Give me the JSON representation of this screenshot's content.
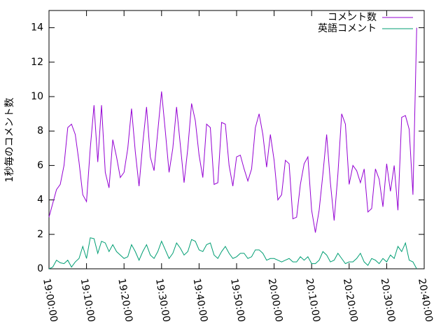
{
  "chart_data": {
    "type": "line",
    "ylabel": "1秒毎のコメント数",
    "x": [
      68400,
      68460,
      68520,
      68580,
      68640,
      68700,
      68760,
      68820,
      68880,
      68940,
      69000,
      69060,
      69120,
      69180,
      69240,
      69300,
      69360,
      69420,
      69480,
      69540,
      69600,
      69660,
      69720,
      69780,
      69840,
      69900,
      69960,
      70020,
      70080,
      70140,
      70200,
      70260,
      70320,
      70380,
      70440,
      70500,
      70560,
      70620,
      70680,
      70740,
      70800,
      70860,
      70920,
      70980,
      71040,
      71100,
      71160,
      71220,
      71280,
      71340,
      71400,
      71460,
      71520,
      71580,
      71640,
      71700,
      71760,
      71820,
      71880,
      71940,
      72000,
      72060,
      72120,
      72180,
      72240,
      72300,
      72360,
      72420,
      72480,
      72540,
      72600,
      72660,
      72720,
      72780,
      72840,
      72900,
      72960,
      73020,
      73080,
      73140,
      73200,
      73260,
      73320,
      73380,
      73440,
      73500,
      73560,
      73620,
      73680,
      73740,
      73800,
      73860,
      73920,
      73980,
      74040,
      74100,
      74160,
      74220,
      74280
    ],
    "series": [
      {
        "name": "コメント数",
        "color": "#9400d3",
        "values": [
          3.0,
          3.8,
          4.6,
          4.9,
          6.0,
          8.2,
          8.4,
          7.8,
          6.2,
          4.3,
          3.9,
          7.0,
          9.5,
          6.2,
          9.5,
          5.6,
          4.7,
          7.5,
          6.5,
          5.3,
          5.6,
          7.0,
          9.3,
          6.8,
          4.8,
          7.3,
          9.4,
          6.5,
          5.7,
          8.0,
          10.3,
          8.0,
          5.6,
          7.0,
          9.4,
          7.2,
          5.0,
          7.0,
          9.6,
          8.6,
          6.6,
          5.3,
          8.4,
          8.2,
          4.9,
          5.0,
          8.5,
          8.4,
          6.0,
          4.8,
          6.5,
          6.6,
          5.8,
          5.1,
          5.8,
          8.2,
          9.0,
          7.8,
          5.9,
          7.8,
          6.3,
          4.0,
          4.3,
          6.3,
          6.1,
          2.9,
          3.0,
          4.9,
          6.1,
          6.5,
          3.4,
          2.1,
          3.4,
          5.5,
          7.8,
          5.0,
          2.8,
          5.5,
          9.0,
          8.4,
          4.9,
          6.0,
          5.7,
          5.0,
          5.8,
          3.3,
          3.5,
          5.8,
          5.2,
          3.6,
          6.1,
          4.5,
          6.0,
          3.4,
          8.8,
          8.9,
          8.1,
          4.3,
          14.0
        ]
      },
      {
        "name": "英語コメント",
        "color": "#009e73",
        "values": [
          0.0,
          0.1,
          0.5,
          0.35,
          0.3,
          0.5,
          0.1,
          0.4,
          0.6,
          1.3,
          0.6,
          1.8,
          1.75,
          0.9,
          1.6,
          1.5,
          1.0,
          1.4,
          1.0,
          0.8,
          0.6,
          0.7,
          1.4,
          1.0,
          0.5,
          1.0,
          1.4,
          0.8,
          0.6,
          1.0,
          1.6,
          1.1,
          0.6,
          0.9,
          1.5,
          1.2,
          0.8,
          1.0,
          1.7,
          1.6,
          1.1,
          1.0,
          1.4,
          1.5,
          0.8,
          0.6,
          1.0,
          1.3,
          0.9,
          0.6,
          0.7,
          0.9,
          0.9,
          0.6,
          0.7,
          1.1,
          1.1,
          0.9,
          0.5,
          0.6,
          0.6,
          0.5,
          0.4,
          0.5,
          0.6,
          0.4,
          0.4,
          0.7,
          0.5,
          0.7,
          0.3,
          0.3,
          0.5,
          1.0,
          0.8,
          0.4,
          0.5,
          0.9,
          0.6,
          0.3,
          0.4,
          0.4,
          0.6,
          0.9,
          0.4,
          0.2,
          0.6,
          0.5,
          0.3,
          0.6,
          0.4,
          0.8,
          0.6,
          1.3,
          1.0,
          1.5,
          0.5,
          0.4,
          0.0
        ]
      }
    ],
    "xlim": [
      68400,
      74400
    ],
    "xticks": [
      {
        "value": 68400,
        "label": "19:00:00"
      },
      {
        "value": 69000,
        "label": "19:10:00"
      },
      {
        "value": 69600,
        "label": "19:20:00"
      },
      {
        "value": 70200,
        "label": "19:30:00"
      },
      {
        "value": 70800,
        "label": "19:40:00"
      },
      {
        "value": 71400,
        "label": "19:50:00"
      },
      {
        "value": 72000,
        "label": "20:00:00"
      },
      {
        "value": 72600,
        "label": "20:10:00"
      },
      {
        "value": 73200,
        "label": "20:20:00"
      },
      {
        "value": 73800,
        "label": "20:30:00"
      },
      {
        "value": 74400,
        "label": "20:40:00"
      }
    ],
    "ylim": [
      0,
      15
    ],
    "yticks": [
      0,
      2,
      4,
      6,
      8,
      10,
      12,
      14
    ],
    "grid": false,
    "legend": "top-right"
  }
}
